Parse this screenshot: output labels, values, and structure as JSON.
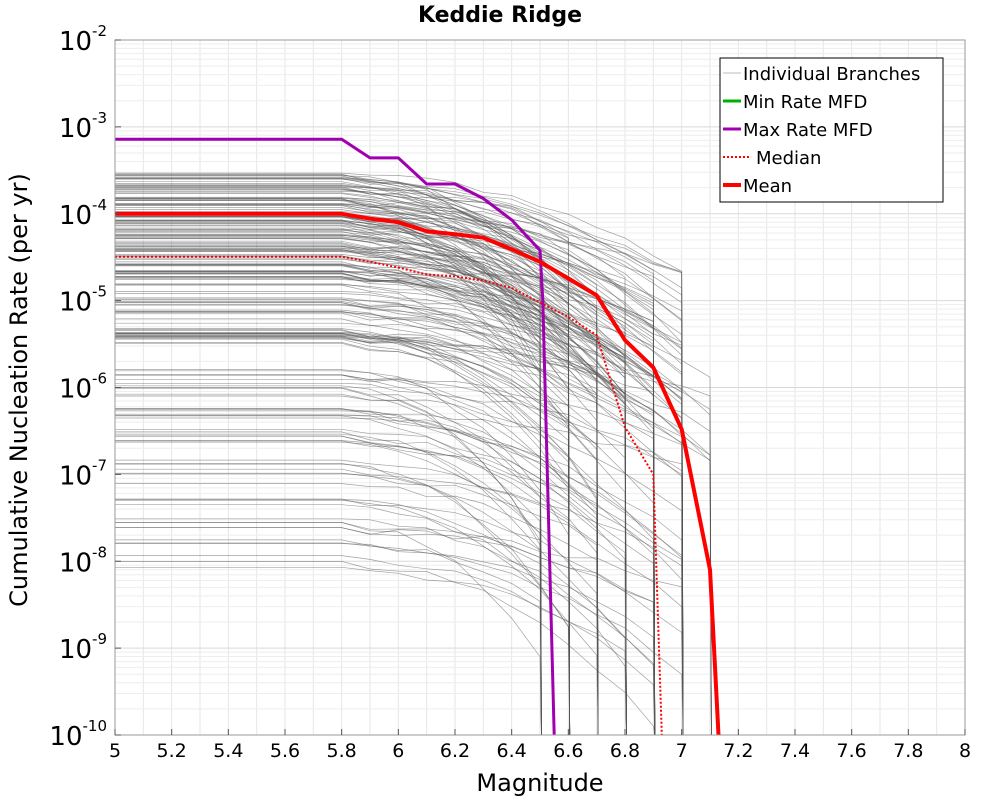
{
  "chart_data": {
    "type": "line",
    "title": "Keddie Ridge",
    "xlabel": "Magnitude",
    "ylabel": "Cumulative Nucleation Rate (per yr)",
    "xlim": [
      5,
      8
    ],
    "ylim_log10": [
      -10,
      -2
    ],
    "y_scale": "log",
    "x_ticks": [
      "5",
      "5.2",
      "5.4",
      "5.6",
      "5.8",
      "6",
      "6.2",
      "6.4",
      "6.6",
      "6.8",
      "7",
      "7.2",
      "7.4",
      "7.6",
      "7.8",
      "8"
    ],
    "y_ticks": [
      {
        "base": "10",
        "exp": "-2"
      },
      {
        "base": "10",
        "exp": "-3"
      },
      {
        "base": "10",
        "exp": "-4"
      },
      {
        "base": "10",
        "exp": "-5"
      },
      {
        "base": "10",
        "exp": "-6"
      },
      {
        "base": "10",
        "exp": "-7"
      },
      {
        "base": "10",
        "exp": "-8"
      },
      {
        "base": "10",
        "exp": "-9"
      },
      {
        "base": "10",
        "exp": "-10"
      }
    ],
    "grid": true,
    "legend": {
      "position": "top-right",
      "entries": [
        "Individual Branches",
        "Min Rate MFD",
        "Max Rate MFD",
        "Median",
        "Mean"
      ]
    },
    "series": [
      {
        "name": "Max Rate MFD",
        "color": "#a000b0",
        "style": "solid",
        "x": [
          5.0,
          5.8,
          5.9,
          6.0,
          6.1,
          6.2,
          6.3,
          6.4,
          6.5,
          6.51,
          6.55
        ],
        "y": [
          0.00072,
          0.00072,
          0.00044,
          0.00044,
          0.00022,
          0.00022,
          0.00015,
          8.5e-05,
          3.8e-05,
          1e-05,
          1e-10
        ]
      },
      {
        "name": "Min Rate MFD",
        "color": "#00b000",
        "style": "solid",
        "x": [],
        "y": []
      },
      {
        "name": "Median",
        "color": "#ff0000",
        "style": "dotted",
        "x": [
          5.0,
          5.8,
          5.9,
          6.0,
          6.1,
          6.2,
          6.3,
          6.4,
          6.5,
          6.6,
          6.7,
          6.8,
          6.9,
          6.93
        ],
        "y": [
          3.2e-05,
          3.2e-05,
          2.8e-05,
          2.4e-05,
          2e-05,
          1.9e-05,
          1.7e-05,
          1.4e-05,
          9.5e-06,
          6.5e-06,
          4e-06,
          3.5e-07,
          1e-07,
          1e-10
        ]
      },
      {
        "name": "Mean",
        "color": "#ff0000",
        "style": "solid",
        "x": [
          5.0,
          5.8,
          5.9,
          6.0,
          6.1,
          6.2,
          6.3,
          6.4,
          6.5,
          6.6,
          6.7,
          6.8,
          6.9,
          7.0,
          7.1,
          7.13
        ],
        "y": [
          0.0001,
          0.0001,
          8.8e-05,
          8e-05,
          6.3e-05,
          5.8e-05,
          5.3e-05,
          3.9e-05,
          2.8e-05,
          1.8e-05,
          1.15e-05,
          3.5e-06,
          1.7e-06,
          3.3e-07,
          8e-09,
          1e-10
        ]
      }
    ],
    "individual_branches": {
      "color": "#555555",
      "count_drawn": 210,
      "groups": [
        {
          "count": 90,
          "log_start_range": [
            -4.45,
            -3.5
          ],
          "max_mag_options": [
            6.5,
            6.6,
            6.7,
            6.8,
            6.9,
            7.0
          ]
        },
        {
          "count": 70,
          "log_start_range": [
            -5.5,
            -4.4
          ],
          "max_mag_options": [
            6.6,
            6.7,
            6.8,
            6.9,
            7.0,
            7.1
          ]
        },
        {
          "count": 50,
          "log_start_range": [
            -8.2,
            -5.75
          ],
          "max_mag_options": [
            6.5,
            6.6,
            6.7,
            6.8,
            6.9,
            7.0
          ]
        }
      ]
    }
  }
}
